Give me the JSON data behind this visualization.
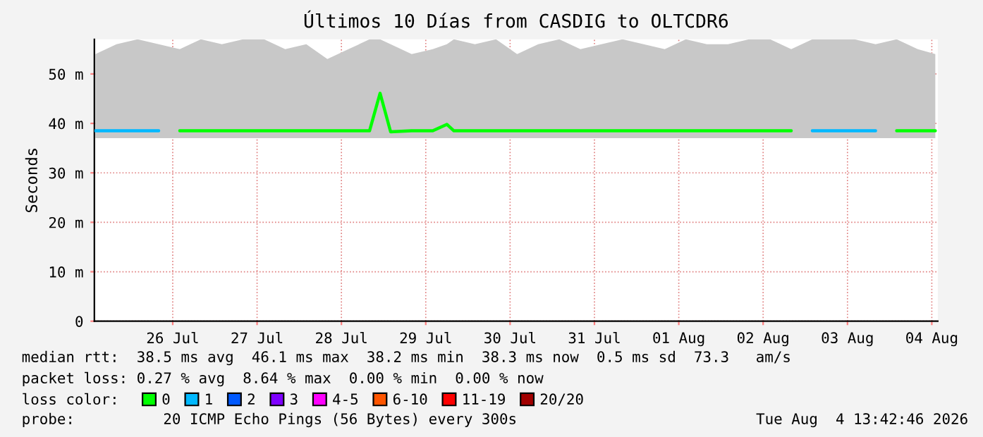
{
  "chart_data": {
    "type": "line",
    "title": "Últimos 10 Días from CASDIG to OLTCDR6",
    "ylabel": "Seconds",
    "x": [
      "2026-07-25T14:00",
      "2026-07-25T20:00",
      "2026-07-26T02:00",
      "2026-07-26T08:00",
      "2026-07-26T14:00",
      "2026-07-26T20:00",
      "2026-07-27T02:00",
      "2026-07-27T08:00",
      "2026-07-27T14:00",
      "2026-07-27T20:00",
      "2026-07-28T02:00",
      "2026-07-28T08:00",
      "2026-07-28T14:00",
      "2026-07-28T20:00",
      "2026-07-28T23:00",
      "2026-07-29T02:00",
      "2026-07-29T08:00",
      "2026-07-29T14:00",
      "2026-07-29T18:00",
      "2026-07-29T20:00",
      "2026-07-30T02:00",
      "2026-07-30T08:00",
      "2026-07-30T14:00",
      "2026-07-30T20:00",
      "2026-07-31T02:00",
      "2026-07-31T08:00",
      "2026-07-31T14:00",
      "2026-07-31T20:00",
      "2026-08-01T02:00",
      "2026-08-01T08:00",
      "2026-08-01T14:00",
      "2026-08-01T20:00",
      "2026-08-02T02:00",
      "2026-08-02T08:00",
      "2026-08-02T14:00",
      "2026-08-02T20:00",
      "2026-08-03T02:00",
      "2026-08-03T08:00",
      "2026-08-03T14:00",
      "2026-08-03T20:00",
      "2026-08-04T02:00",
      "2026-08-04T08:00",
      "2026-08-04T13:00"
    ],
    "series": [
      {
        "name": "0",
        "color": "#00ff00",
        "values": [
          null,
          null,
          null,
          null,
          38.5,
          38.5,
          38.5,
          38.5,
          38.5,
          38.5,
          38.5,
          38.5,
          38.5,
          38.5,
          46.1,
          38.3,
          38.5,
          38.5,
          39.8,
          38.5,
          38.5,
          38.5,
          38.5,
          38.5,
          38.5,
          38.5,
          38.5,
          38.5,
          38.5,
          38.5,
          38.5,
          38.5,
          38.5,
          38.5,
          38.5,
          38.5,
          null,
          null,
          null,
          null,
          38.5,
          38.5,
          38.5
        ],
        "lower": [
          37,
          37,
          37,
          37,
          37,
          37,
          37,
          37,
          37,
          37,
          37,
          37,
          37,
          37,
          37,
          37,
          37,
          37,
          37,
          37,
          37,
          37,
          37,
          37,
          37,
          37,
          37,
          37,
          37,
          37,
          37,
          37,
          37,
          37,
          37,
          37,
          37,
          37,
          37,
          37,
          37,
          37,
          37
        ],
        "upper": [
          54,
          56,
          57,
          56,
          55,
          57,
          56,
          57,
          57,
          55,
          56,
          53,
          55,
          57,
          57,
          56,
          54,
          55,
          56,
          57,
          56,
          57,
          54,
          56,
          57,
          55,
          56,
          57,
          56,
          55,
          57,
          56,
          56,
          57,
          57,
          55,
          57,
          57,
          57,
          56,
          57,
          55,
          54
        ]
      },
      {
        "name": "1",
        "color": "#00b8ff",
        "values": [
          38.5,
          38.5,
          38.5,
          38.5,
          null,
          null,
          null,
          null,
          null,
          null,
          null,
          null,
          null,
          null,
          null,
          null,
          null,
          null,
          null,
          null,
          null,
          null,
          null,
          null,
          null,
          null,
          null,
          null,
          null,
          null,
          null,
          null,
          null,
          null,
          null,
          null,
          38.5,
          38.5,
          38.5,
          38.5,
          null,
          null,
          null
        ]
      },
      {
        "name": "2",
        "color": "#0059ff",
        "values": [
          null,
          null,
          null,
          null,
          null,
          null,
          null,
          null,
          null,
          null,
          null,
          null,
          null,
          null,
          null,
          null,
          null,
          null,
          null,
          null,
          null,
          null,
          null,
          null,
          null,
          null,
          null,
          null,
          null,
          null,
          null,
          null,
          null,
          null,
          null,
          null,
          null,
          null,
          null,
          null,
          null,
          null,
          null
        ]
      },
      {
        "name": "3",
        "color": "#7e00ff",
        "values": [
          null,
          null,
          null,
          null,
          null,
          null,
          null,
          null,
          null,
          null,
          null,
          null,
          null,
          null,
          null,
          null,
          null,
          null,
          null,
          null,
          null,
          null,
          null,
          null,
          null,
          null,
          null,
          null,
          null,
          null,
          null,
          null,
          null,
          null,
          null,
          null,
          null,
          null,
          null,
          null,
          null,
          null,
          null
        ]
      },
      {
        "name": "4-5",
        "color": "#ff00ff",
        "values": [
          null,
          null,
          null,
          null,
          null,
          null,
          null,
          null,
          null,
          null,
          null,
          null,
          null,
          null,
          null,
          null,
          null,
          null,
          null,
          null,
          null,
          null,
          null,
          null,
          null,
          null,
          null,
          null,
          null,
          null,
          null,
          null,
          null,
          null,
          null,
          null,
          null,
          null,
          null,
          null,
          null,
          null,
          null
        ]
      },
      {
        "name": "6-10",
        "color": "#ff5500",
        "values": [
          null,
          null,
          null,
          null,
          null,
          null,
          null,
          null,
          null,
          null,
          null,
          null,
          null,
          null,
          null,
          null,
          null,
          null,
          null,
          null,
          null,
          null,
          null,
          null,
          null,
          null,
          null,
          null,
          null,
          null,
          null,
          null,
          null,
          null,
          null,
          null,
          null,
          null,
          null,
          null,
          null,
          null,
          null
        ]
      },
      {
        "name": "11-19",
        "color": "#ff0000",
        "values": [
          null,
          null,
          null,
          null,
          null,
          null,
          null,
          null,
          null,
          null,
          null,
          null,
          null,
          null,
          null,
          null,
          null,
          null,
          null,
          null,
          null,
          null,
          null,
          null,
          null,
          null,
          null,
          null,
          null,
          null,
          null,
          null,
          null,
          null,
          null,
          null,
          null,
          null,
          null,
          null,
          null,
          null,
          null
        ]
      },
      {
        "name": "20/20",
        "color": "#a10000",
        "values": [
          null,
          null,
          null,
          null,
          null,
          null,
          null,
          null,
          null,
          null,
          null,
          null,
          null,
          null,
          null,
          null,
          null,
          null,
          null,
          null,
          null,
          null,
          null,
          null,
          null,
          null,
          null,
          null,
          null,
          null,
          null,
          null,
          null,
          null,
          null,
          null,
          null,
          null,
          null,
          null,
          null,
          null,
          null
        ]
      }
    ],
    "legend_title": "loss color:",
    "legend": "bottom",
    "marker": "none",
    "line_style": "solid",
    "grid": true,
    "xlim": [
      "2026-07-25T13:42",
      "2026-08-04T13:42"
    ],
    "xticks": [
      {
        "value": "2026-07-26T12:00",
        "label": "26 Jul"
      },
      {
        "value": "2026-07-27T12:00",
        "label": "27 Jul"
      },
      {
        "value": "2026-07-28T12:00",
        "label": "28 Jul"
      },
      {
        "value": "2026-07-29T12:00",
        "label": "29 Jul"
      },
      {
        "value": "2026-07-30T12:00",
        "label": "30 Jul"
      },
      {
        "value": "2026-07-31T12:00",
        "label": "31 Jul"
      },
      {
        "value": "2026-08-01T12:00",
        "label": "01 Aug"
      },
      {
        "value": "2026-08-02T12:00",
        "label": "02 Aug"
      },
      {
        "value": "2026-08-03T12:00",
        "label": "03 Aug"
      },
      {
        "value": "2026-08-04T12:00",
        "label": "04 Aug"
      }
    ],
    "ylim": [
      0,
      57
    ],
    "yticks": [
      0,
      {
        "value": 10,
        "label": "10 m"
      },
      {
        "value": 20,
        "label": "20 m"
      },
      {
        "value": 30,
        "label": "30 m"
      },
      {
        "value": 40,
        "label": "40 m"
      },
      {
        "value": 50,
        "label": "50 m"
      }
    ],
    "annotations": [
      "median rtt:  38.5 ms avg  46.1 ms max  38.2 ms min  38.3 ms now  0.5 ms sd  73.3   am/s",
      "packet loss: 0.27 % avg  8.64 % max  0.00 % min  0.00 % now",
      "probe:          20 ICMP Echo Pings (56 Bytes) every 300s",
      "Tue Aug  4 13:42:46 2026"
    ]
  }
}
